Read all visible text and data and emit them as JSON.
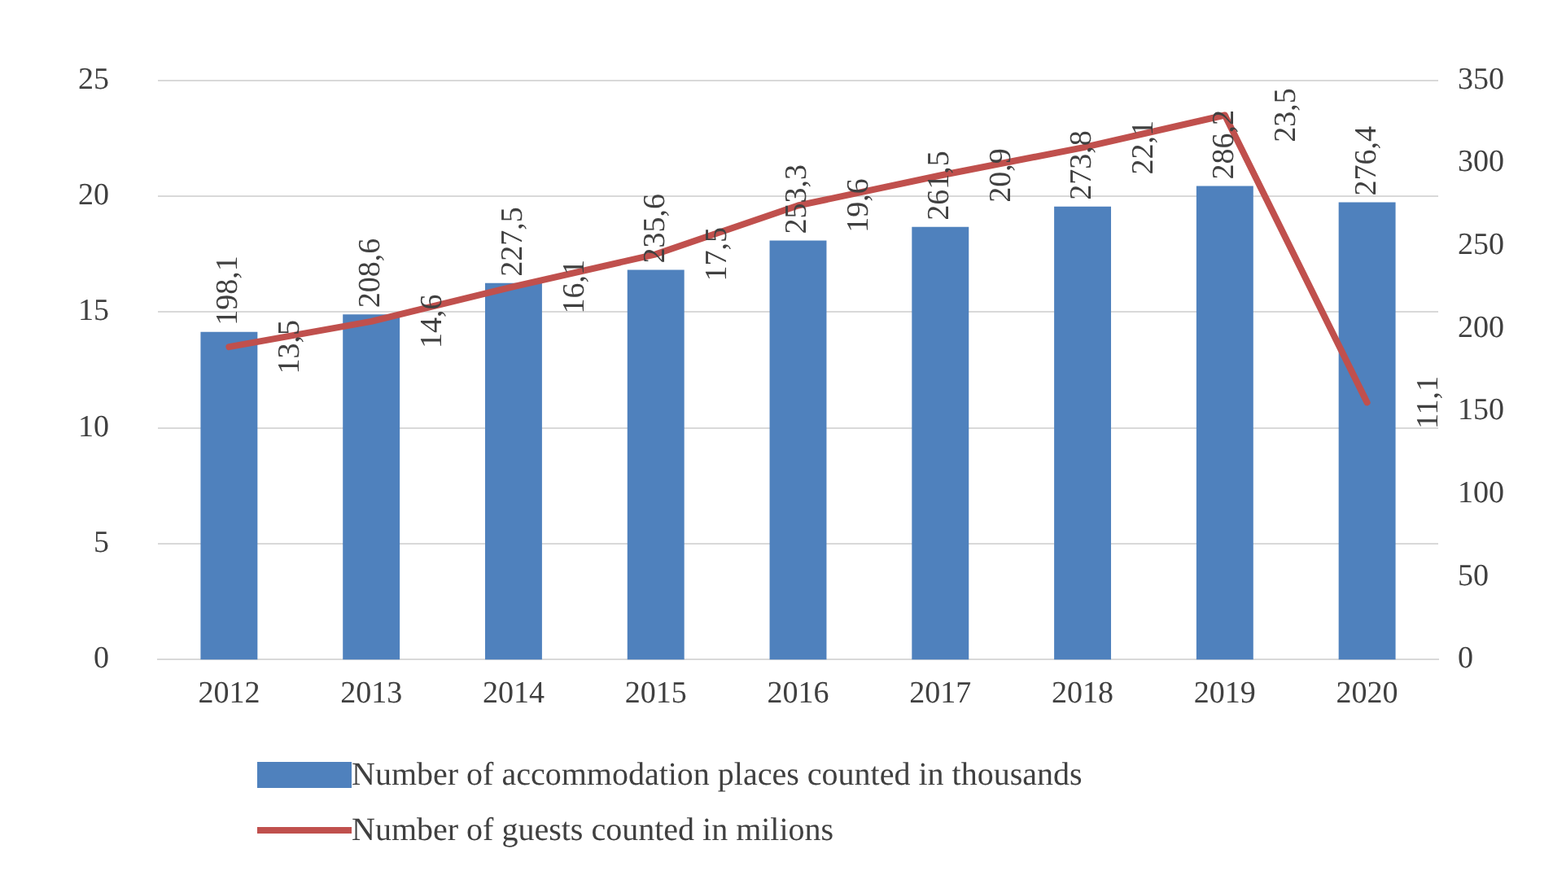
{
  "chart_data": {
    "type": "bar",
    "categories": [
      "2012",
      "2013",
      "2014",
      "2015",
      "2016",
      "2017",
      "2018",
      "2019",
      "2020"
    ],
    "series": [
      {
        "axis": "y2",
        "name": "Number of accommodation places counted in thousands",
        "color": "#4f81bd",
        "values": [
          198.1,
          208.6,
          227.5,
          235.6,
          253.3,
          261.5,
          273.8,
          286.2,
          276.4
        ],
        "value_labels": [
          "198,1",
          "208,6",
          "227,5",
          "235,6",
          "253,3",
          "261,5",
          "273,8",
          "286,2",
          "276,4"
        ]
      },
      {
        "type": "line",
        "axis": "y",
        "name": "Number of guests counted in milions",
        "color": "#c0504d",
        "values": [
          13.5,
          14.6,
          16.1,
          17.5,
          19.6,
          20.9,
          22.1,
          23.5,
          11.1
        ],
        "value_labels": [
          "13,5",
          "14,6",
          "16,1",
          "17,5",
          "19,6",
          "20,9",
          "22,1",
          "23,5",
          "11,1"
        ]
      }
    ],
    "ylim": [
      0,
      25
    ],
    "yticks": [
      0,
      5,
      10,
      15,
      20,
      25
    ],
    "y2lim": [
      0,
      350
    ],
    "y2ticks": [
      0,
      50,
      100,
      150,
      200,
      250,
      300,
      350
    ],
    "grid": "y",
    "legend": "bottom",
    "marker": "none"
  }
}
